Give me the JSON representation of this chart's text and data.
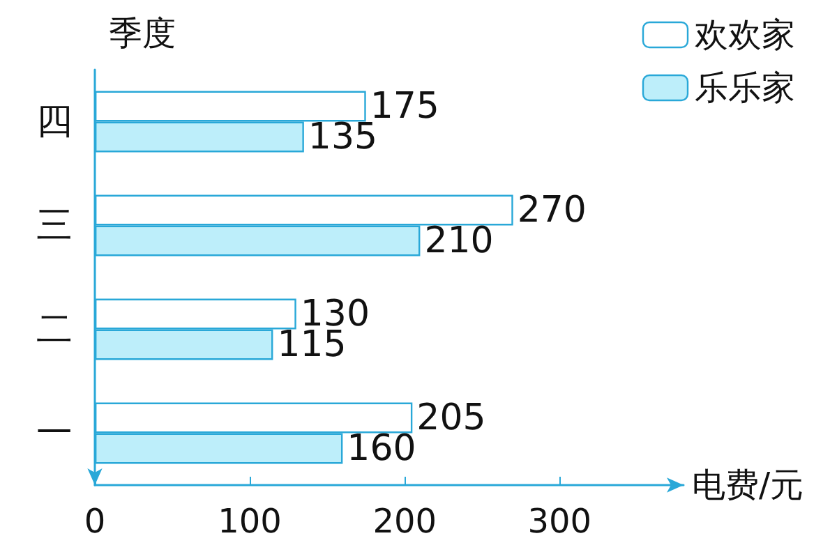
{
  "chart_data": {
    "type": "bar",
    "orientation": "horizontal",
    "categories": [
      "四",
      "三",
      "二",
      "一"
    ],
    "series": [
      {
        "name": "欢欢家",
        "color": "#ffffff",
        "values": [
          175,
          270,
          130,
          205
        ]
      },
      {
        "name": "乐乐家",
        "color": "#bdeefa",
        "values": [
          135,
          210,
          115,
          160
        ]
      }
    ],
    "xlabel": "电费/元",
    "ylabel": "季度",
    "xlim": [
      0,
      380
    ],
    "xticks": [
      0,
      100,
      200,
      300
    ],
    "data_labels": true,
    "legend": "top right",
    "grid": false
  }
}
